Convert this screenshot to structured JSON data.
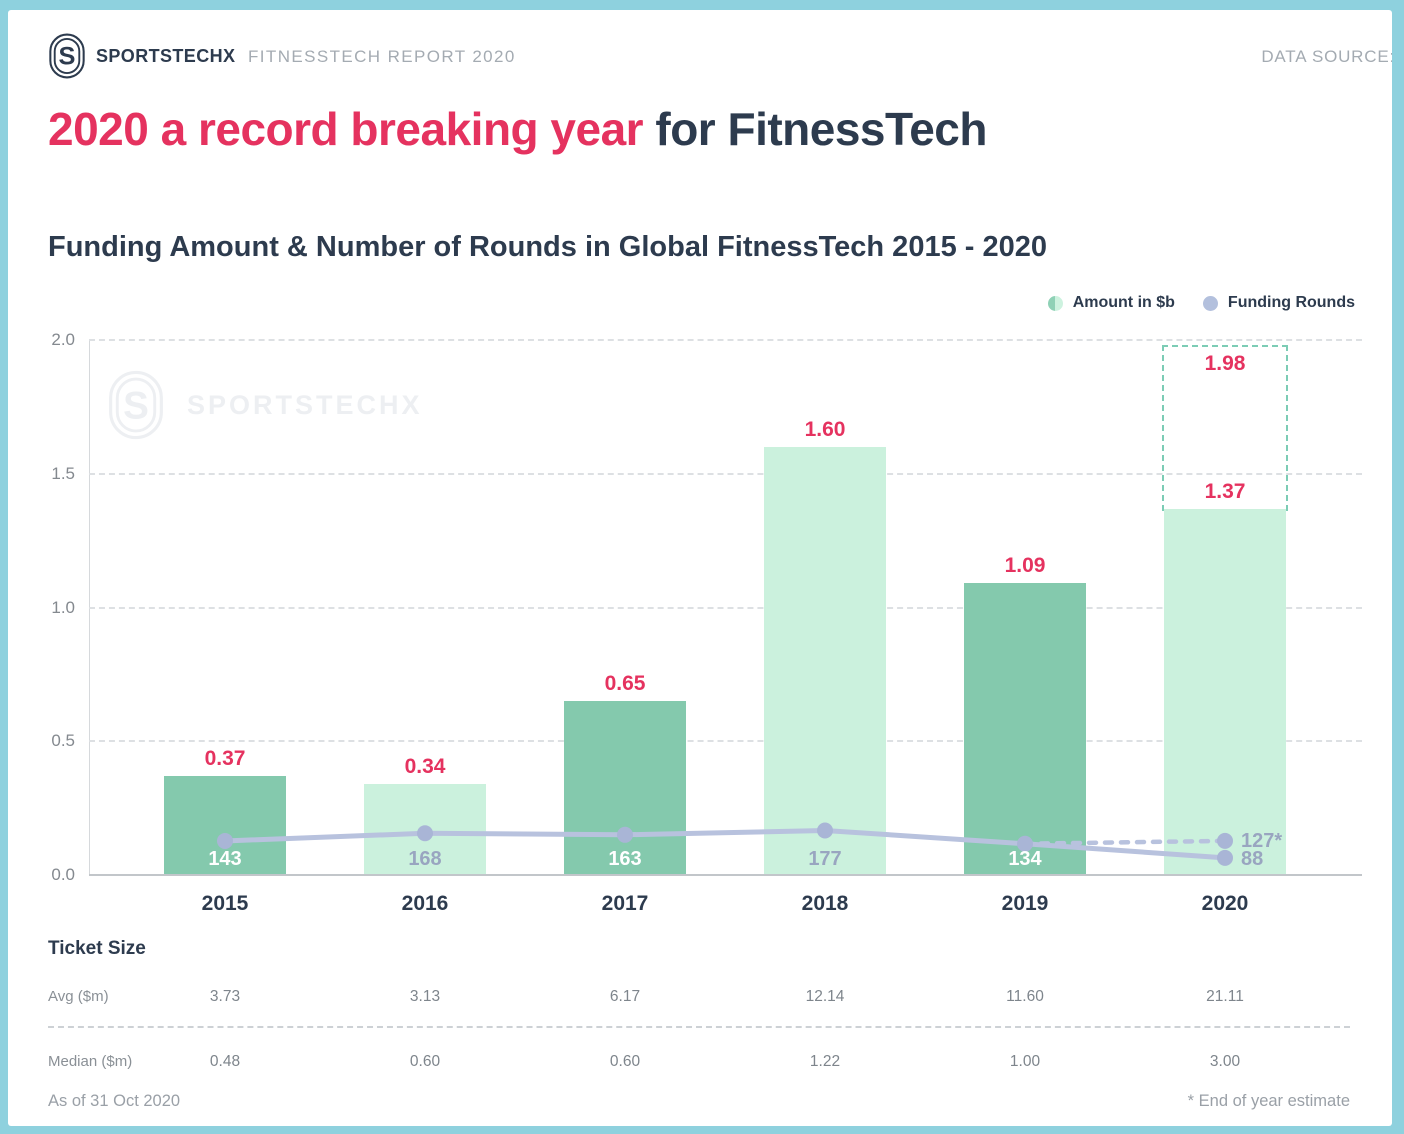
{
  "header": {
    "brand": "SPORTSTECHX",
    "report": "FITNESSTECH REPORT 2020",
    "data_source_label": "DATA SOURCE:"
  },
  "title": {
    "highlight": "2020 a record breaking year",
    "rest": " for FitnessTech"
  },
  "watermark": "SPORTSTECHX",
  "legend": {
    "amount": "Amount in $b",
    "rounds": "Funding Rounds"
  },
  "chart_data": {
    "type": "bar+line",
    "title": "Funding Amount & Number of Rounds in Global FitnessTech 2015 - 2020",
    "categories": [
      "2015",
      "2016",
      "2017",
      "2018",
      "2019",
      "2020"
    ],
    "series": [
      {
        "name": "Amount in $b",
        "type": "bar",
        "values": [
          0.37,
          0.34,
          0.65,
          1.6,
          1.09,
          1.37
        ],
        "labels": [
          "0.37",
          "0.34",
          "0.65",
          "1.60",
          "1.09",
          "1.37"
        ]
      },
      {
        "name": "Funding Rounds",
        "type": "line",
        "values": [
          143,
          168,
          163,
          177,
          134,
          88
        ],
        "labels": [
          "143",
          "168",
          "163",
          "177",
          "134",
          "88"
        ]
      }
    ],
    "estimate_2020": {
      "amount_total": 1.98,
      "amount_label": "1.98",
      "rounds": 127,
      "rounds_label": "127*"
    },
    "ylim": [
      0,
      2.0
    ],
    "yticks": [
      0.0,
      0.5,
      1.0,
      1.5,
      2.0
    ],
    "ytick_labels": [
      "0.0",
      "0.5",
      "1.0",
      "1.5",
      "2.0"
    ],
    "grid": "dashed horizontal gridlines",
    "legend_position": "top-right"
  },
  "table": {
    "title": "Ticket Size",
    "rows": [
      {
        "label": "Avg ($m)",
        "values": [
          "3.73",
          "3.13",
          "6.17",
          "12.14",
          "11.60",
          "21.11"
        ]
      },
      {
        "label": "Median ($m)",
        "values": [
          "0.48",
          "0.60",
          "0.60",
          "1.22",
          "1.00",
          "3.00"
        ]
      }
    ]
  },
  "footer": {
    "left": "As of 31 Oct 2020",
    "right": "* End of year estimate"
  },
  "colors": {
    "frame_blue": "#8ed1de",
    "navy": "#2d3b4e",
    "pink": "#e5325f",
    "bar_dark_green": "#84c9ad",
    "bar_light_green": "#cbf1dd",
    "estimate_dash_green": "#7cccb5",
    "line_lavender": "#b8c2de",
    "marker_lavender": "#a9b5d6",
    "rounds_text_gray": "#99a5c0",
    "muted_gray": "#a4abb2"
  }
}
